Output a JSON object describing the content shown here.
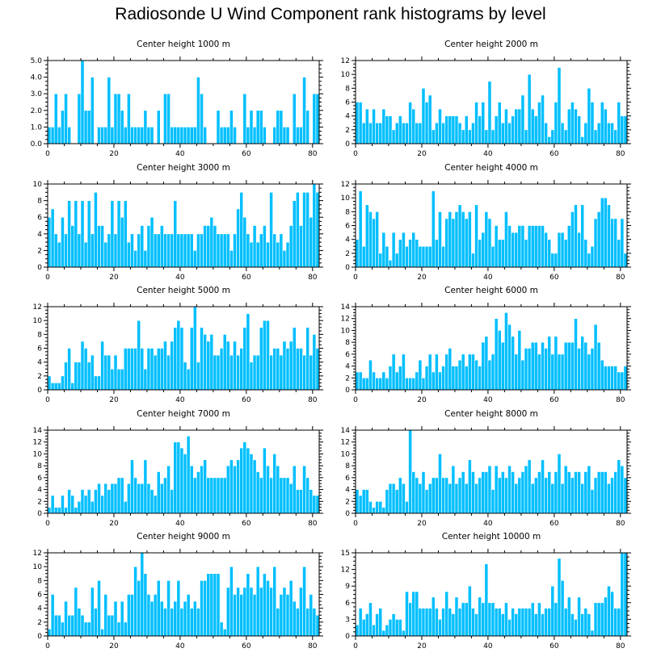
{
  "figure_title": "Radiosonde U Wind Component rank histograms by level",
  "bar_color": "#00bfff",
  "bar_edge_color": "#ffffff",
  "chart_data": [
    {
      "type": "bar",
      "title": "Center height 1000 m",
      "xlim": [
        0,
        82
      ],
      "ylim": [
        0,
        5
      ],
      "xticks": [
        0,
        20,
        40,
        60,
        80
      ],
      "xtick_labels": [
        "0",
        "20",
        "40",
        "60",
        "80"
      ],
      "yticks": [
        0,
        1,
        2,
        3,
        4,
        5
      ],
      "ytick_labels": [
        "0.0",
        "1.0",
        "2.0",
        "3.0",
        "4.0",
        "5.0"
      ],
      "values": [
        1,
        1,
        3,
        1,
        2,
        3,
        1,
        0,
        0,
        3,
        5,
        2,
        2,
        4,
        0,
        1,
        1,
        1,
        4,
        1,
        3,
        3,
        2,
        1,
        3,
        1,
        1,
        1,
        1,
        2,
        1,
        1,
        0,
        2,
        0,
        3,
        3,
        1,
        1,
        1,
        1,
        1,
        1,
        1,
        1,
        4,
        3,
        1,
        0,
        0,
        0,
        2,
        1,
        1,
        1,
        2,
        1,
        0,
        0,
        3,
        1,
        2,
        1,
        2,
        2,
        1,
        0,
        0,
        1,
        2,
        2,
        1,
        1,
        0,
        3,
        1,
        1,
        4,
        2,
        0,
        3,
        3
      ]
    },
    {
      "type": "bar",
      "title": "Center height 2000 m",
      "xlim": [
        0,
        82
      ],
      "ylim": [
        0,
        12
      ],
      "xticks": [
        0,
        20,
        40,
        60,
        80
      ],
      "xtick_labels": [
        "0",
        "20",
        "40",
        "60",
        "80"
      ],
      "yticks": [
        0,
        2,
        4,
        6,
        8,
        10,
        12
      ],
      "ytick_labels": [
        "0",
        "2",
        "4",
        "6",
        "8",
        "10",
        "12"
      ],
      "values": [
        6,
        6,
        3,
        5,
        3,
        5,
        3,
        3,
        5,
        4,
        4,
        2,
        3,
        4,
        3,
        3,
        6,
        5,
        3,
        3,
        8,
        6,
        7,
        2,
        3,
        5,
        3,
        4,
        4,
        4,
        4,
        3,
        2,
        4,
        2,
        3,
        6,
        4,
        6,
        2,
        9,
        2,
        4,
        6,
        3,
        5,
        3,
        4,
        5,
        5,
        7,
        2,
        10,
        5,
        4,
        6,
        7,
        3,
        1,
        2,
        6,
        11,
        3,
        2,
        5,
        6,
        5,
        4,
        1,
        3,
        8,
        6,
        2,
        3,
        6,
        5,
        3,
        3,
        2,
        6,
        4,
        4
      ]
    },
    {
      "type": "bar",
      "title": "Center height 3000 m",
      "xlim": [
        0,
        82
      ],
      "ylim": [
        0,
        10
      ],
      "xticks": [
        0,
        20,
        40,
        60,
        80
      ],
      "xtick_labels": [
        "0",
        "20",
        "40",
        "60",
        "80"
      ],
      "yticks": [
        0,
        2,
        4,
        6,
        8,
        10
      ],
      "ytick_labels": [
        "0",
        "2",
        "4",
        "6",
        "8",
        "10"
      ],
      "values": [
        6,
        7,
        4,
        3,
        6,
        4,
        8,
        5,
        8,
        4,
        8,
        3,
        8,
        4,
        9,
        5,
        5,
        3,
        4,
        8,
        4,
        8,
        6,
        8,
        3,
        4,
        2,
        4,
        5,
        2,
        5,
        6,
        4,
        4,
        5,
        4,
        4,
        4,
        8,
        4,
        4,
        4,
        4,
        4,
        2,
        4,
        4,
        5,
        5,
        6,
        5,
        4,
        4,
        4,
        4,
        2,
        4,
        7,
        9,
        6,
        4,
        3,
        5,
        3,
        4,
        5,
        3,
        9,
        4,
        3,
        4,
        2,
        3,
        5,
        8,
        9,
        5,
        9,
        9,
        6,
        10,
        9
      ]
    },
    {
      "type": "bar",
      "title": "Center height 4000 m",
      "xlim": [
        0,
        82
      ],
      "ylim": [
        0,
        12
      ],
      "xticks": [
        0,
        20,
        40,
        60,
        80
      ],
      "xtick_labels": [
        "0",
        "20",
        "40",
        "60",
        "80"
      ],
      "yticks": [
        0,
        2,
        4,
        6,
        8,
        10,
        12
      ],
      "ytick_labels": [
        "0",
        "2",
        "4",
        "6",
        "8",
        "10",
        "12"
      ],
      "values": [
        4,
        11,
        3,
        9,
        8,
        7,
        8,
        2,
        5,
        3,
        1,
        5,
        2,
        4,
        5,
        3,
        4,
        5,
        4,
        3,
        3,
        3,
        3,
        11,
        4,
        8,
        3,
        7,
        8,
        7,
        8,
        9,
        8,
        7,
        8,
        2,
        9,
        4,
        5,
        8,
        7,
        3,
        6,
        4,
        4,
        8,
        6,
        5,
        5,
        6,
        6,
        4,
        6,
        6,
        6,
        6,
        6,
        5,
        4,
        2,
        2,
        5,
        5,
        4,
        6,
        8,
        9,
        5,
        9,
        4,
        2,
        3,
        7,
        8,
        10,
        10,
        9,
        7,
        7,
        4,
        7,
        2
      ]
    },
    {
      "type": "bar",
      "title": "Center height 5000 m",
      "xlim": [
        0,
        82
      ],
      "ylim": [
        0,
        12
      ],
      "xticks": [
        0,
        20,
        40,
        60,
        80
      ],
      "xtick_labels": [
        "0",
        "20",
        "40",
        "60",
        "80"
      ],
      "yticks": [
        0,
        2,
        4,
        6,
        8,
        10,
        12
      ],
      "ytick_labels": [
        "0",
        "2",
        "4",
        "6",
        "8",
        "10",
        "12"
      ],
      "values": [
        2,
        1,
        1,
        1,
        2,
        4,
        6,
        1,
        4,
        4,
        7,
        6,
        4,
        5,
        2,
        2,
        7,
        5,
        5,
        3,
        5,
        3,
        3,
        6,
        6,
        6,
        6,
        10,
        6,
        3,
        6,
        6,
        5,
        6,
        6,
        7,
        5,
        7,
        9,
        10,
        9,
        4,
        3,
        9,
        12,
        4,
        9,
        8,
        7,
        8,
        5,
        5,
        6,
        8,
        7,
        5,
        7,
        5,
        6,
        9,
        11,
        4,
        5,
        5,
        9,
        10,
        10,
        5,
        6,
        6,
        5,
        7,
        6,
        7,
        9,
        6,
        6,
        5,
        9,
        5,
        8,
        6
      ]
    },
    {
      "type": "bar",
      "title": "Center height 6000 m",
      "xlim": [
        0,
        82
      ],
      "ylim": [
        0,
        14
      ],
      "xticks": [
        0,
        20,
        40,
        60,
        80
      ],
      "xtick_labels": [
        "0",
        "20",
        "40",
        "60",
        "80"
      ],
      "yticks": [
        0,
        2,
        4,
        6,
        8,
        10,
        12,
        14
      ],
      "ytick_labels": [
        "0",
        "2",
        "4",
        "6",
        "8",
        "10",
        "12",
        "14"
      ],
      "values": [
        3,
        3,
        2,
        2,
        5,
        3,
        2,
        2,
        3,
        2,
        4,
        6,
        3,
        4,
        6,
        2,
        2,
        2,
        3,
        5,
        2,
        4,
        6,
        3,
        6,
        3,
        4,
        6,
        7,
        4,
        4,
        5,
        6,
        4,
        6,
        6,
        5,
        4,
        8,
        9,
        5,
        6,
        12,
        10,
        8,
        13,
        11,
        9,
        6,
        10,
        5,
        7,
        7,
        8,
        8,
        6,
        8,
        7,
        9,
        6,
        9,
        6,
        6,
        8,
        8,
        8,
        12,
        7,
        9,
        8,
        6,
        7,
        11,
        8,
        5,
        4,
        4,
        4,
        4,
        3,
        3,
        4
      ]
    },
    {
      "type": "bar",
      "title": "Center height 7000 m",
      "xlim": [
        0,
        82
      ],
      "ylim": [
        0,
        14
      ],
      "xticks": [
        0,
        20,
        40,
        60,
        80
      ],
      "xtick_labels": [
        "0",
        "20",
        "40",
        "60",
        "80"
      ],
      "yticks": [
        0,
        2,
        4,
        6,
        8,
        10,
        12,
        14
      ],
      "ytick_labels": [
        "0",
        "2",
        "4",
        "6",
        "8",
        "10",
        "12",
        "14"
      ],
      "values": [
        1,
        3,
        1,
        1,
        3,
        1,
        4,
        3,
        1,
        2,
        4,
        3,
        4,
        2,
        4,
        5,
        3,
        5,
        4,
        5,
        5,
        6,
        6,
        2,
        5,
        9,
        6,
        5,
        5,
        9,
        5,
        4,
        3,
        7,
        5,
        6,
        8,
        4,
        12,
        12,
        11,
        10,
        13,
        8,
        6,
        7,
        8,
        9,
        6,
        6,
        6,
        6,
        6,
        6,
        8,
        9,
        8,
        9,
        11,
        12,
        11,
        10,
        9,
        7,
        6,
        11,
        8,
        6,
        10,
        8,
        6,
        6,
        6,
        5,
        8,
        4,
        4,
        8,
        6,
        4,
        3,
        3
      ]
    },
    {
      "type": "bar",
      "title": "Center height 8000 m",
      "xlim": [
        0,
        82
      ],
      "ylim": [
        0,
        14
      ],
      "xticks": [
        0,
        20,
        40,
        60,
        80
      ],
      "xtick_labels": [
        "0",
        "20",
        "40",
        "60",
        "80"
      ],
      "yticks": [
        0,
        2,
        4,
        6,
        8,
        10,
        12,
        14
      ],
      "ytick_labels": [
        "0",
        "2",
        "4",
        "6",
        "8",
        "10",
        "12",
        "14"
      ],
      "values": [
        4,
        3,
        4,
        4,
        2,
        1,
        2,
        2,
        1,
        4,
        5,
        5,
        4,
        6,
        5,
        2,
        14,
        7,
        6,
        5,
        7,
        4,
        5,
        6,
        6,
        10,
        6,
        6,
        5,
        8,
        5,
        6,
        7,
        5,
        9,
        7,
        5,
        6,
        7,
        7,
        8,
        4,
        8,
        6,
        7,
        6,
        8,
        7,
        5,
        6,
        7,
        8,
        9,
        5,
        6,
        7,
        9,
        6,
        7,
        5,
        7,
        10,
        5,
        8,
        7,
        6,
        7,
        7,
        5,
        7,
        8,
        4,
        6,
        7,
        7,
        7,
        5,
        6,
        7,
        9,
        8,
        6
      ]
    },
    {
      "type": "bar",
      "title": "Center height 9000 m",
      "xlim": [
        0,
        82
      ],
      "ylim": [
        0,
        12
      ],
      "xticks": [
        0,
        20,
        40,
        60,
        80
      ],
      "xtick_labels": [
        "0",
        "20",
        "40",
        "60",
        "80"
      ],
      "yticks": [
        0,
        2,
        4,
        6,
        8,
        10,
        12
      ],
      "ytick_labels": [
        "0",
        "2",
        "4",
        "6",
        "8",
        "10",
        "12"
      ],
      "values": [
        1,
        6,
        3,
        3,
        2,
        5,
        3,
        3,
        7,
        4,
        3,
        2,
        2,
        7,
        4,
        8,
        1,
        6,
        3,
        3,
        5,
        2,
        5,
        2,
        6,
        6,
        10,
        8,
        12,
        9,
        6,
        5,
        6,
        8,
        5,
        4,
        8,
        4,
        5,
        8,
        4,
        5,
        6,
        4,
        5,
        4,
        8,
        8,
        9,
        9,
        9,
        9,
        2,
        1,
        7,
        10,
        6,
        7,
        6,
        7,
        9,
        7,
        6,
        10,
        7,
        9,
        8,
        7,
        10,
        4,
        6,
        7,
        6,
        8,
        5,
        4,
        7,
        10,
        4,
        6,
        4,
        3
      ]
    },
    {
      "type": "bar",
      "title": "Center height 10000 m",
      "xlim": [
        0,
        82
      ],
      "ylim": [
        0,
        15
      ],
      "xticks": [
        0,
        20,
        40,
        60,
        80
      ],
      "xtick_labels": [
        "0",
        "20",
        "40",
        "60",
        "80"
      ],
      "yticks": [
        0,
        3,
        6,
        9,
        12,
        15
      ],
      "ytick_labels": [
        "0",
        "3",
        "6",
        "9",
        "12",
        "15"
      ],
      "values": [
        2,
        5,
        3,
        4,
        6,
        2,
        4,
        5,
        1,
        2,
        3,
        4,
        3,
        3,
        1,
        8,
        6,
        8,
        8,
        5,
        5,
        5,
        5,
        7,
        5,
        3,
        5,
        8,
        5,
        4,
        7,
        5,
        6,
        6,
        9,
        5,
        4,
        7,
        6,
        13,
        6,
        6,
        5,
        5,
        4,
        6,
        3,
        5,
        4,
        5,
        5,
        5,
        5,
        6,
        4,
        6,
        4,
        5,
        5,
        9,
        6,
        14,
        10,
        5,
        7,
        4,
        3,
        7,
        4,
        5,
        4,
        1,
        6,
        6,
        6,
        7,
        9,
        8,
        5,
        5,
        15,
        15
      ]
    }
  ]
}
